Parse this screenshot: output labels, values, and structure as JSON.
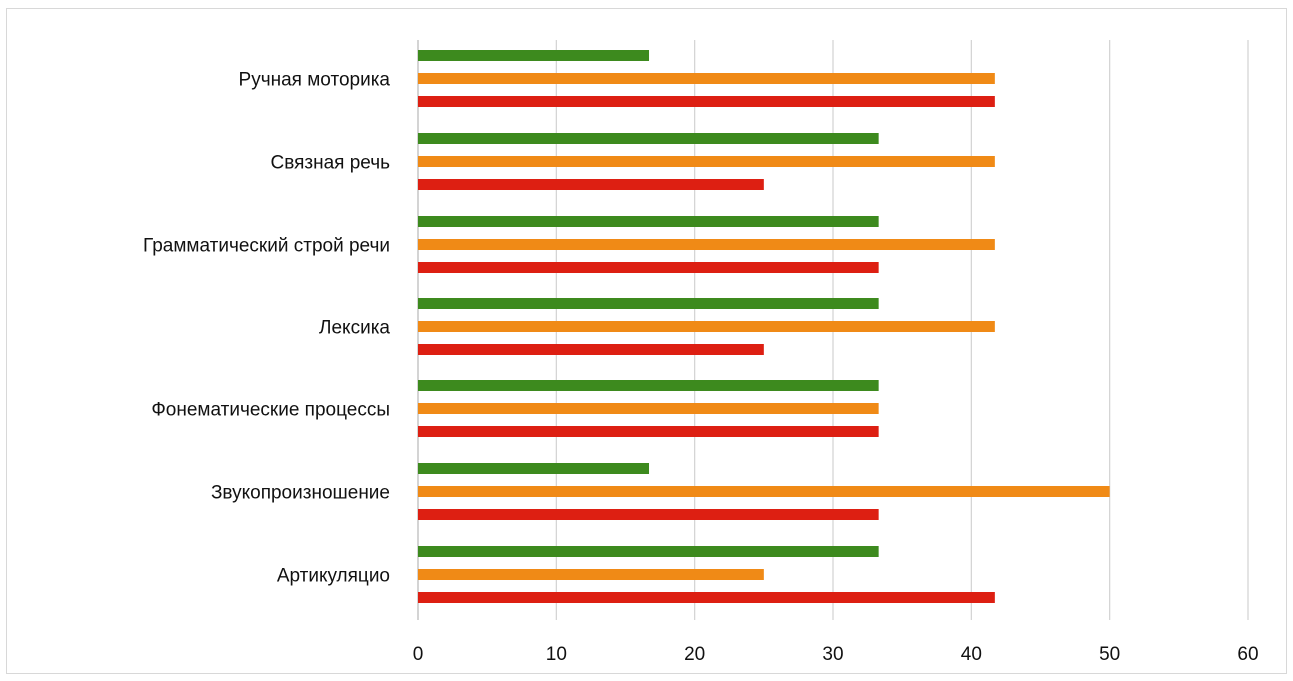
{
  "chart_data": {
    "type": "bar",
    "orientation": "horizontal",
    "title": "",
    "xlabel": "",
    "ylabel": "",
    "xlim": [
      0,
      60
    ],
    "x_ticks": [
      "0",
      "10",
      "20",
      "30",
      "40",
      "50",
      "60"
    ],
    "grid": "vertical",
    "legend": "none",
    "categories": [
      "Ручная моторика",
      "Связная речь",
      "Грамматический строй речи",
      "Лексика",
      "Фонематические процессы",
      "Звукопроизношение",
      "Артикуляцио"
    ],
    "series": [
      {
        "color": "#3d8a1e",
        "values": [
          16.7,
          33.3,
          33.3,
          33.3,
          33.3,
          16.7,
          33.3
        ]
      },
      {
        "color": "#f08a16",
        "values": [
          41.7,
          41.7,
          41.7,
          41.7,
          33.3,
          50,
          25
        ]
      },
      {
        "color": "#dd1f12",
        "values": [
          41.7,
          25,
          33.3,
          25,
          33.3,
          33.3,
          41.7
        ]
      }
    ]
  }
}
